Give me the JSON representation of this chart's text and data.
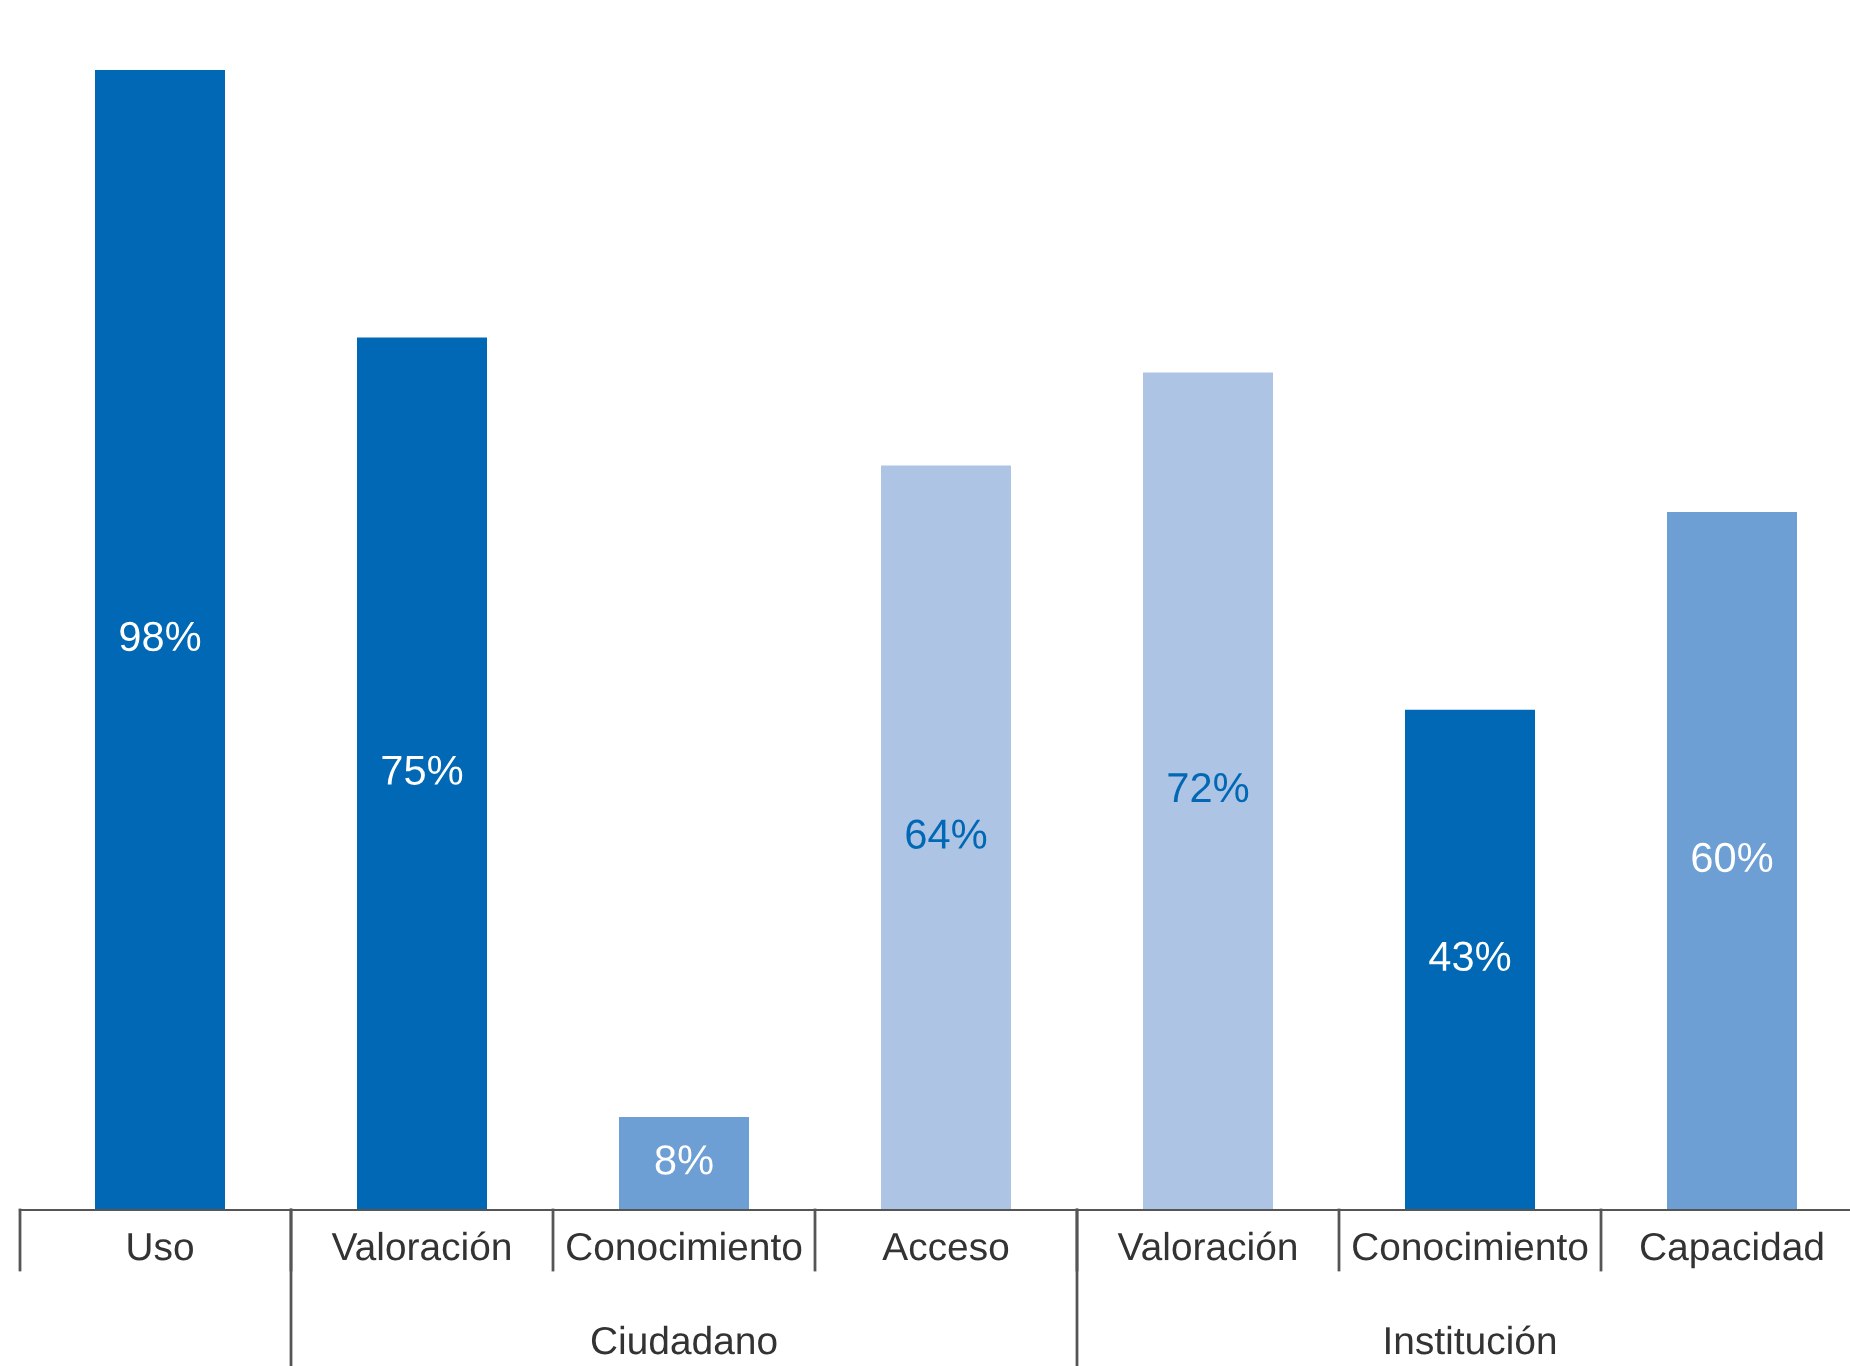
{
  "chart_data": {
    "type": "bar",
    "categories": [
      "Uso",
      "Valoración",
      "Conocimiento",
      "Acceso",
      "Valoración",
      "Conocimiento",
      "Capacidad"
    ],
    "values": [
      98,
      75,
      8,
      64,
      72,
      43,
      60
    ],
    "colors": [
      "#0068b4",
      "#0068b4",
      "#6d9fd5",
      "#aec4e5",
      "#aec4e5",
      "#0068b4",
      "#6d9fd5"
    ],
    "value_labels": [
      "98%",
      "75%",
      "8%",
      "64%",
      "72%",
      "43%",
      "60%"
    ],
    "annotations": [
      "Ciudadano",
      "Institución"
    ]
  }
}
